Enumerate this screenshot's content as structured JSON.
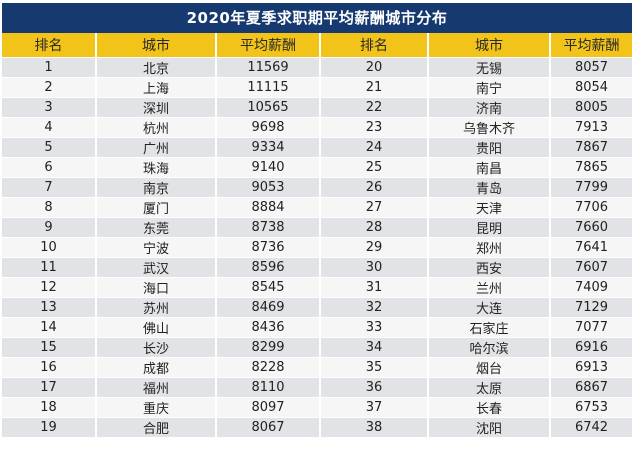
{
  "title": "2020年夏季求职期平均薪酬城市分布",
  "columns": [
    "排名",
    "城市",
    "平均薪酬",
    "排名",
    "城市",
    "平均薪酬"
  ],
  "accent_colors": {
    "title_bar": "#163a70",
    "header": "#f2c318",
    "row_odd": "#e2e3e6",
    "row_even": "#f6f6f7"
  },
  "rows": [
    {
      "rank_a": "1",
      "city_a": "北京",
      "salary_a": "11569",
      "rank_b": "20",
      "city_b": "无锡",
      "salary_b": "8057"
    },
    {
      "rank_a": "2",
      "city_a": "上海",
      "salary_a": "11115",
      "rank_b": "21",
      "city_b": "南宁",
      "salary_b": "8054"
    },
    {
      "rank_a": "3",
      "city_a": "深圳",
      "salary_a": "10565",
      "rank_b": "22",
      "city_b": "济南",
      "salary_b": "8005"
    },
    {
      "rank_a": "4",
      "city_a": "杭州",
      "salary_a": "9698",
      "rank_b": "23",
      "city_b": "乌鲁木齐",
      "salary_b": "7913"
    },
    {
      "rank_a": "5",
      "city_a": "广州",
      "salary_a": "9334",
      "rank_b": "24",
      "city_b": "贵阳",
      "salary_b": "7867"
    },
    {
      "rank_a": "6",
      "city_a": "珠海",
      "salary_a": "9140",
      "rank_b": "25",
      "city_b": "南昌",
      "salary_b": "7865"
    },
    {
      "rank_a": "7",
      "city_a": "南京",
      "salary_a": "9053",
      "rank_b": "26",
      "city_b": "青岛",
      "salary_b": "7799"
    },
    {
      "rank_a": "8",
      "city_a": "厦门",
      "salary_a": "8884",
      "rank_b": "27",
      "city_b": "天津",
      "salary_b": "7706"
    },
    {
      "rank_a": "9",
      "city_a": "东莞",
      "salary_a": "8738",
      "rank_b": "28",
      "city_b": "昆明",
      "salary_b": "7660"
    },
    {
      "rank_a": "10",
      "city_a": "宁波",
      "salary_a": "8736",
      "rank_b": "29",
      "city_b": "郑州",
      "salary_b": "7641"
    },
    {
      "rank_a": "11",
      "city_a": "武汉",
      "salary_a": "8596",
      "rank_b": "30",
      "city_b": "西安",
      "salary_b": "7607"
    },
    {
      "rank_a": "12",
      "city_a": "海口",
      "salary_a": "8545",
      "rank_b": "31",
      "city_b": "兰州",
      "salary_b": "7409"
    },
    {
      "rank_a": "13",
      "city_a": "苏州",
      "salary_a": "8469",
      "rank_b": "32",
      "city_b": "大连",
      "salary_b": "7129"
    },
    {
      "rank_a": "14",
      "city_a": "佛山",
      "salary_a": "8436",
      "rank_b": "33",
      "city_b": "石家庄",
      "salary_b": "7077"
    },
    {
      "rank_a": "15",
      "city_a": "长沙",
      "salary_a": "8299",
      "rank_b": "34",
      "city_b": "哈尔滨",
      "salary_b": "6916"
    },
    {
      "rank_a": "16",
      "city_a": "成都",
      "salary_a": "8228",
      "rank_b": "35",
      "city_b": "烟台",
      "salary_b": "6913"
    },
    {
      "rank_a": "17",
      "city_a": "福州",
      "salary_a": "8110",
      "rank_b": "36",
      "city_b": "太原",
      "salary_b": "6867"
    },
    {
      "rank_a": "18",
      "city_a": "重庆",
      "salary_a": "8097",
      "rank_b": "37",
      "city_b": "长春",
      "salary_b": "6753"
    },
    {
      "rank_a": "19",
      "city_a": "合肥",
      "salary_a": "8067",
      "rank_b": "38",
      "city_b": "沈阳",
      "salary_b": "6742"
    }
  ]
}
